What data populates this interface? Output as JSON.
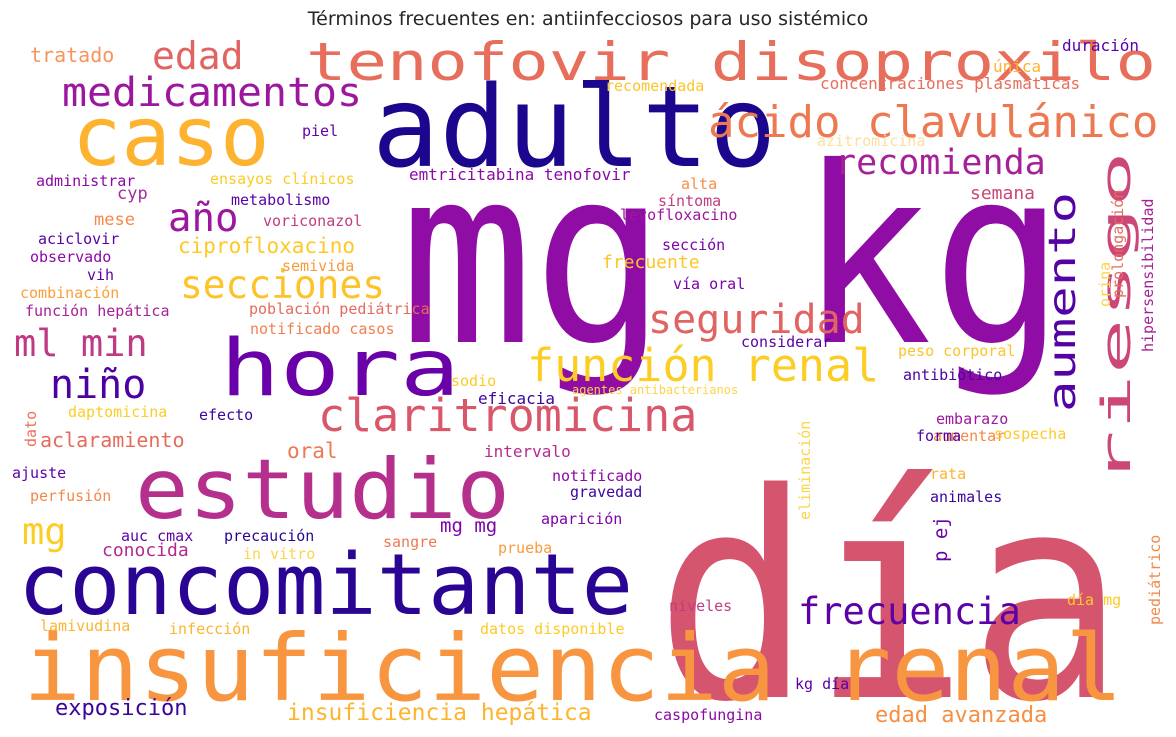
{
  "chart_data": {
    "type": "wordcloud",
    "title": "Términos frecuentes en: antiinfecciosos para uso sistémico",
    "words": [
      {
        "text": "mg kg",
        "color": "#8f0da4"
      },
      {
        "text": "día",
        "color": "#d5546e"
      },
      {
        "text": "adulto",
        "color": "#1b068d"
      },
      {
        "text": "insuficiencia renal",
        "color": "#f89540"
      },
      {
        "text": "concomitante",
        "color": "#2a0593"
      },
      {
        "text": "caso",
        "color": "#fdb32f"
      },
      {
        "text": "estudio",
        "color": "#b52f8c"
      },
      {
        "text": "hora",
        "color": "#6a00a8"
      },
      {
        "text": "tenofovir disoproxilo",
        "color": "#e76e5b"
      },
      {
        "text": "claritromicina",
        "color": "#d8576b"
      },
      {
        "text": "ácido clavulánico",
        "color": "#ed7953"
      },
      {
        "text": "función renal",
        "color": "#fcce25"
      },
      {
        "text": "medicamentos",
        "color": "#9c179e"
      },
      {
        "text": "secciones",
        "color": "#fdc328"
      },
      {
        "text": "seguridad",
        "color": "#e16462"
      },
      {
        "text": "riesgo",
        "color": "#cc4778"
      },
      {
        "text": "aumento",
        "color": "#5302a3"
      },
      {
        "text": "frecuencia",
        "color": "#5c01a6"
      },
      {
        "text": "recomienda",
        "color": "#a62098"
      },
      {
        "text": "niño",
        "color": "#4c02a1"
      },
      {
        "text": "año",
        "color": "#9c179e"
      },
      {
        "text": "edad",
        "color": "#e16462"
      },
      {
        "text": "ml min",
        "color": "#c03a83"
      },
      {
        "text": "mg",
        "color": "#fcce25"
      },
      {
        "text": "insuficiencia hepática",
        "color": "#fdb42f"
      },
      {
        "text": "edad avanzada",
        "color": "#f68f44"
      },
      {
        "text": "exposición",
        "color": "#3b049a"
      },
      {
        "text": "aclaramiento",
        "color": "#e56b5d"
      },
      {
        "text": "ciprofloxacino",
        "color": "#fdc926"
      },
      {
        "text": "oral",
        "color": "#ed7953"
      },
      {
        "text": "tratado",
        "color": "#f7955c"
      },
      {
        "text": "mg mg",
        "color": "#7e03a8"
      },
      {
        "text": "p ej",
        "color": "#6a00a8"
      },
      {
        "text": "conocida",
        "color": "#b12a90"
      },
      {
        "text": "frecuente",
        "color": "#fdc627"
      },
      {
        "text": "semana",
        "color": "#cc4778"
      },
      {
        "text": "cyp",
        "color": "#a22b9b"
      },
      {
        "text": "mese",
        "color": "#f48849"
      },
      {
        "text": "emtricitabina tenofovir",
        "color": "#8b0aa5"
      },
      {
        "text": "intervalo",
        "color": "#b32c8e"
      },
      {
        "text": "eficacia",
        "color": "#3e049c"
      },
      {
        "text": "única",
        "color": "#fdb42f"
      },
      {
        "text": "duración",
        "color": "#5b01a5"
      },
      {
        "text": "concentraciones plasmáticas",
        "color": "#e76e5b"
      },
      {
        "text": "recomendada",
        "color": "#fdc527"
      },
      {
        "text": "piel",
        "color": "#6a00a8"
      },
      {
        "text": "azitromicina",
        "color": "#fde0a0"
      },
      {
        "text": "administrar",
        "color": "#8b0aa5"
      },
      {
        "text": "ensayos clínicos",
        "color": "#fdca26"
      },
      {
        "text": "alta",
        "color": "#f68f44"
      },
      {
        "text": "síntoma",
        "color": "#c23c81"
      },
      {
        "text": "metabolismo",
        "color": "#5c01a6"
      },
      {
        "text": "voriconazol",
        "color": "#c23c81"
      },
      {
        "text": "levofloxacino",
        "color": "#9c179e"
      },
      {
        "text": "aciclovir",
        "color": "#5302a3"
      },
      {
        "text": "observado",
        "color": "#8b0aa5"
      },
      {
        "text": "sección",
        "color": "#7e03a8"
      },
      {
        "text": "vih",
        "color": "#5c01a6"
      },
      {
        "text": "semivida",
        "color": "#f89a3c"
      },
      {
        "text": "vía oral",
        "color": "#7e03a8"
      },
      {
        "text": "combinación",
        "color": "#fb9f3a"
      },
      {
        "text": "población pediátrica",
        "color": "#e56b5d"
      },
      {
        "text": "función hepática",
        "color": "#a62098"
      },
      {
        "text": "notificado casos",
        "color": "#f0804e"
      },
      {
        "text": "considerar",
        "color": "#5c01a6"
      },
      {
        "text": "peso corporal",
        "color": "#fdc328"
      },
      {
        "text": "sodio",
        "color": "#fdca26"
      },
      {
        "text": "agentes antibacterianos",
        "color": "#fdd44a"
      },
      {
        "text": "antibiótico",
        "color": "#4c02a1"
      },
      {
        "text": "daptomicina",
        "color": "#fcce25"
      },
      {
        "text": "efecto",
        "color": "#3e049c"
      },
      {
        "text": "dato",
        "color": "#e97158"
      },
      {
        "text": "embarazo",
        "color": "#9c179e"
      },
      {
        "text": "aumentar",
        "color": "#f48849"
      },
      {
        "text": "forma",
        "color": "#5302a3"
      },
      {
        "text": "sospecha",
        "color": "#fdca26"
      },
      {
        "text": "eliminación",
        "color": "#fdd44a"
      },
      {
        "text": "ajuste",
        "color": "#5c01a6"
      },
      {
        "text": "notificado",
        "color": "#8b0aa5"
      },
      {
        "text": "rata",
        "color": "#fdb32f"
      },
      {
        "text": "perfusión",
        "color": "#f48849"
      },
      {
        "text": "gravedad",
        "color": "#3e049c"
      },
      {
        "text": "animales",
        "color": "#3b049a"
      },
      {
        "text": "aparición",
        "color": "#7e03a8"
      },
      {
        "text": "auc cmax",
        "color": "#5c01a6"
      },
      {
        "text": "precaución",
        "color": "#2a0593"
      },
      {
        "text": "in vitro",
        "color": "#fdd44a"
      },
      {
        "text": "sangre",
        "color": "#ed7953"
      },
      {
        "text": "prueba",
        "color": "#f89a3c"
      },
      {
        "text": "niveles",
        "color": "#c23c81"
      },
      {
        "text": "día mg",
        "color": "#fdca26"
      },
      {
        "text": "lamivudina",
        "color": "#fdb42f"
      },
      {
        "text": "infección",
        "color": "#fdb42f"
      },
      {
        "text": "datos disponible",
        "color": "#fdca26"
      },
      {
        "text": "kg día",
        "color": "#5c01a6"
      },
      {
        "text": "caspofungina",
        "color": "#8b0aa5"
      },
      {
        "text": "hipersensibilidad",
        "color": "#a62098"
      },
      {
        "text": "prolongación",
        "color": "#e56b5d"
      },
      {
        "text": "orina",
        "color": "#fdd44a"
      },
      {
        "text": "pediátrico",
        "color": "#f48849"
      }
    ]
  }
}
